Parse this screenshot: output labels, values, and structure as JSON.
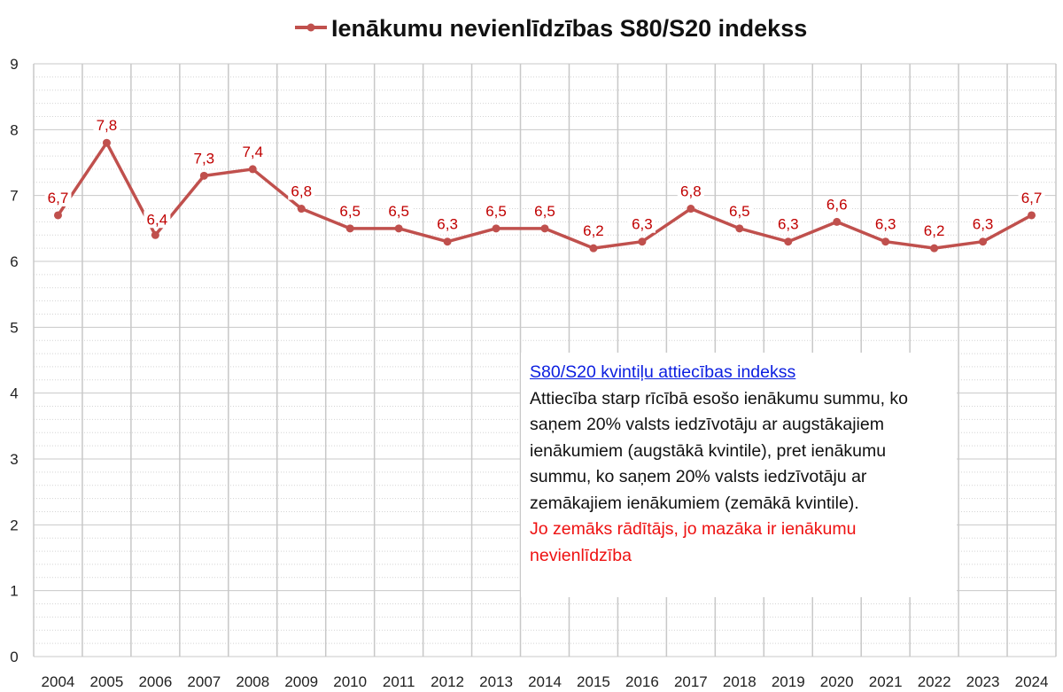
{
  "chart_data": {
    "type": "line",
    "title": "Ienākumu nevienlīdzības S80/S20 indekss",
    "xlabel": "",
    "ylabel": "",
    "ylim": [
      0,
      9
    ],
    "yticks": [
      "0",
      "1",
      "2",
      "3",
      "4",
      "5",
      "6",
      "7",
      "8",
      "9"
    ],
    "categories": [
      "2004",
      "2005",
      "2006",
      "2007",
      "2008",
      "2009",
      "2010",
      "2011",
      "2012",
      "2013",
      "2014",
      "2015",
      "2016",
      "2017",
      "2018",
      "2019",
      "2020",
      "2021",
      "2022",
      "2023",
      "2024"
    ],
    "series": [
      {
        "name": "Ienākumu nevienlīdzības S80/S20 indekss",
        "values": [
          6.7,
          7.8,
          6.4,
          7.3,
          7.4,
          6.8,
          6.5,
          6.5,
          6.3,
          6.5,
          6.5,
          6.2,
          6.3,
          6.8,
          6.5,
          6.3,
          6.6,
          6.3,
          6.2,
          6.3,
          6.7
        ],
        "labels": [
          "6,7",
          "7,8",
          "6,4",
          "7,3",
          "7,4",
          "6,8",
          "6,5",
          "6,5",
          "6,3",
          "6,5",
          "6,5",
          "6,2",
          "6,3",
          "6,8",
          "6,5",
          "6,3",
          "6,6",
          "6,3",
          "6,2",
          "6,3",
          "6,7"
        ]
      }
    ],
    "grid": true,
    "legend_position": "top",
    "colors": {
      "series": "#c0504d",
      "data_labels": "#c00000"
    }
  },
  "annotation": {
    "heading": "S80/S20 kvintiļu attiecības indekss",
    "body": "Attiecība starp rīcībā esošo ienākumu summu, ko saņem 20% valsts iedzīvotāju ar augstākajiem ienākumiem (augstākā kvintile), pret ienākumu summu, ko saņem 20% valsts iedzīvotāju ar zemākajiem ienākumiem (zemākā kvintile).",
    "note": "Jo zemāks rādītājs, jo mazāka ir ienākumu nevienlīdzība"
  }
}
